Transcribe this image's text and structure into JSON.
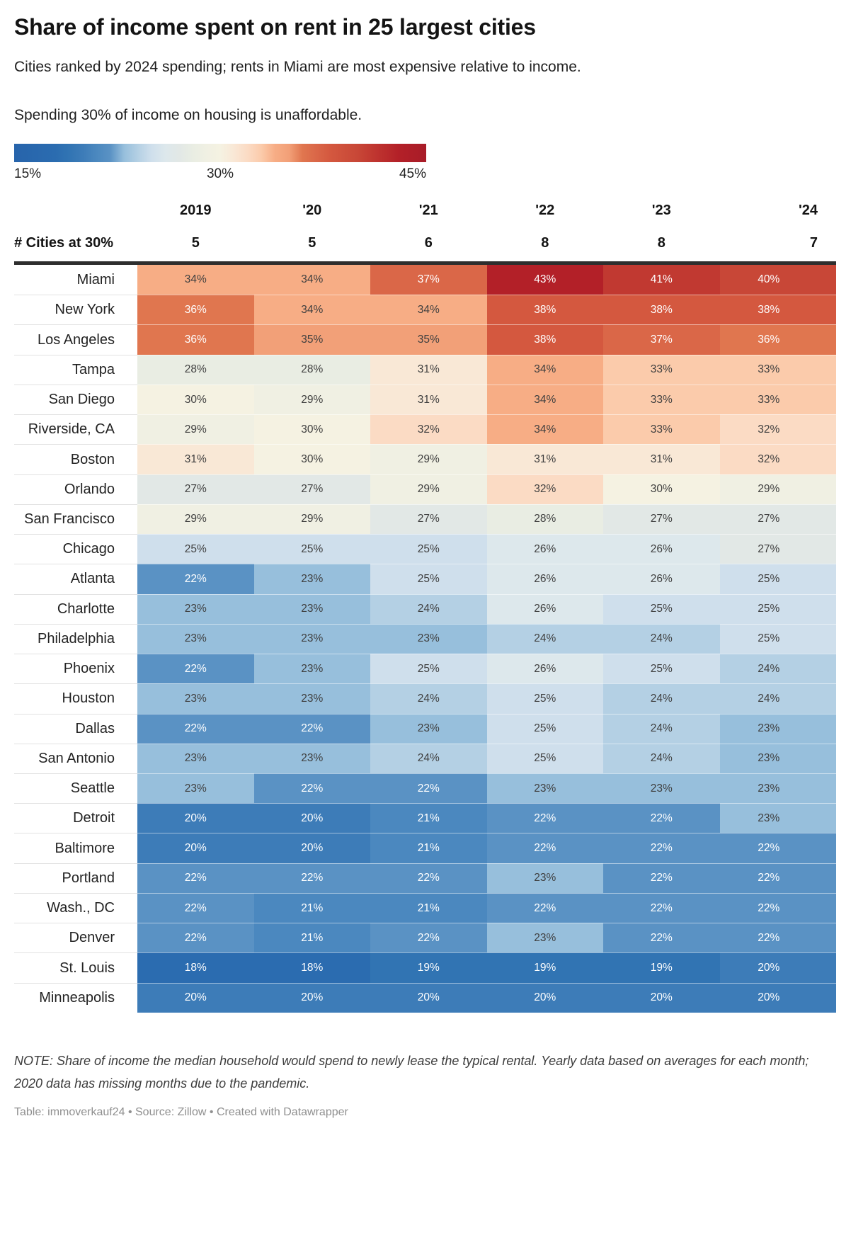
{
  "title": "Share of income spent on rent in 25 largest cities",
  "subtitle": "Cities ranked by 2024 spending; rents in Miami are most expensive relative to income.",
  "affordability_note": "Spending 30% of income on housing is unaffordable.",
  "chart_data": {
    "type": "heatmap",
    "title": "Share of income spent on rent in 25 largest cities",
    "subtitle": "Cities ranked by 2024 spending; rents in Miami are most expensive relative to income.",
    "unit": "%",
    "columns": [
      "2019",
      "'20",
      "'21",
      "'22",
      "'23",
      "'24"
    ],
    "counts_label": "# Cities at 30%",
    "counts": [
      5,
      5,
      6,
      8,
      8,
      7
    ],
    "rows": [
      {
        "city": "Miami",
        "values": [
          34,
          34,
          37,
          43,
          41,
          40
        ]
      },
      {
        "city": "New York",
        "values": [
          36,
          34,
          34,
          38,
          38,
          38
        ]
      },
      {
        "city": "Los Angeles",
        "values": [
          36,
          35,
          35,
          38,
          37,
          36
        ]
      },
      {
        "city": "Tampa",
        "values": [
          28,
          28,
          31,
          34,
          33,
          33
        ]
      },
      {
        "city": "San Diego",
        "values": [
          30,
          29,
          31,
          34,
          33,
          33
        ]
      },
      {
        "city": "Riverside, CA",
        "values": [
          29,
          30,
          32,
          34,
          33,
          32
        ]
      },
      {
        "city": "Boston",
        "values": [
          31,
          30,
          29,
          31,
          31,
          32
        ]
      },
      {
        "city": "Orlando",
        "values": [
          27,
          27,
          29,
          32,
          30,
          29
        ]
      },
      {
        "city": "San Francisco",
        "values": [
          29,
          29,
          27,
          28,
          27,
          27
        ]
      },
      {
        "city": "Chicago",
        "values": [
          25,
          25,
          25,
          26,
          26,
          27
        ]
      },
      {
        "city": "Atlanta",
        "values": [
          22,
          23,
          25,
          26,
          26,
          25
        ]
      },
      {
        "city": "Charlotte",
        "values": [
          23,
          23,
          24,
          26,
          25,
          25
        ]
      },
      {
        "city": "Philadelphia",
        "values": [
          23,
          23,
          23,
          24,
          24,
          25
        ]
      },
      {
        "city": "Phoenix",
        "values": [
          22,
          23,
          25,
          26,
          25,
          24
        ]
      },
      {
        "city": "Houston",
        "values": [
          23,
          23,
          24,
          25,
          24,
          24
        ]
      },
      {
        "city": "Dallas",
        "values": [
          22,
          22,
          23,
          25,
          24,
          23
        ]
      },
      {
        "city": "San Antonio",
        "values": [
          23,
          23,
          24,
          25,
          24,
          23
        ]
      },
      {
        "city": "Seattle",
        "values": [
          23,
          22,
          22,
          23,
          23,
          23
        ]
      },
      {
        "city": "Detroit",
        "values": [
          20,
          20,
          21,
          22,
          22,
          23
        ]
      },
      {
        "city": "Baltimore",
        "values": [
          20,
          20,
          21,
          22,
          22,
          22
        ]
      },
      {
        "city": "Portland",
        "values": [
          22,
          22,
          22,
          23,
          22,
          22
        ]
      },
      {
        "city": "Wash., DC",
        "values": [
          22,
          21,
          21,
          22,
          22,
          22
        ]
      },
      {
        "city": "Denver",
        "values": [
          22,
          21,
          22,
          23,
          22,
          22
        ]
      },
      {
        "city": "St. Louis",
        "values": [
          18,
          18,
          19,
          19,
          19,
          20
        ]
      },
      {
        "city": "Minneapolis",
        "values": [
          20,
          20,
          20,
          20,
          20,
          20
        ]
      }
    ],
    "scale": {
      "domain": [
        15,
        45
      ],
      "label_min": "15%",
      "label_mid": "30%",
      "label_max": "45%",
      "stops": [
        [
          15,
          "#2764ab"
        ],
        [
          18,
          "#2b6cb0"
        ],
        [
          19,
          "#3174b3"
        ],
        [
          20,
          "#3d7cb8"
        ],
        [
          21,
          "#4b88bf"
        ],
        [
          22,
          "#5a92c4"
        ],
        [
          23,
          "#97bfdc"
        ],
        [
          24,
          "#b4d0e4"
        ],
        [
          25,
          "#cfdfec"
        ],
        [
          26,
          "#dde8ec"
        ],
        [
          27,
          "#e2e8e6"
        ],
        [
          28,
          "#e9ede3"
        ],
        [
          29,
          "#f0f0e3"
        ],
        [
          30,
          "#f5f2e2"
        ],
        [
          31,
          "#f9e8d6"
        ],
        [
          32,
          "#fbdbc4"
        ],
        [
          33,
          "#fbcbab"
        ],
        [
          34,
          "#f7ad85"
        ],
        [
          35,
          "#f2a078"
        ],
        [
          36,
          "#e0764f"
        ],
        [
          37,
          "#da6748"
        ],
        [
          38,
          "#d4583f"
        ],
        [
          40,
          "#c84737"
        ],
        [
          41,
          "#c13931"
        ],
        [
          43,
          "#b32028"
        ],
        [
          45,
          "#a81c28"
        ]
      ],
      "white_text_max": 22,
      "white_text_min": 36,
      "dark_text_color": "#3f3f3f",
      "light_text_color": "#ffffff"
    }
  },
  "footer": {
    "note": "NOTE: Share of income the median household would spend to newly lease the typical rental. Yearly data based on averages for each month; 2020 data has missing months due to the pandemic.",
    "credit": "Table: immoverkauf24 • Source: Zillow • Created with Datawrapper"
  }
}
